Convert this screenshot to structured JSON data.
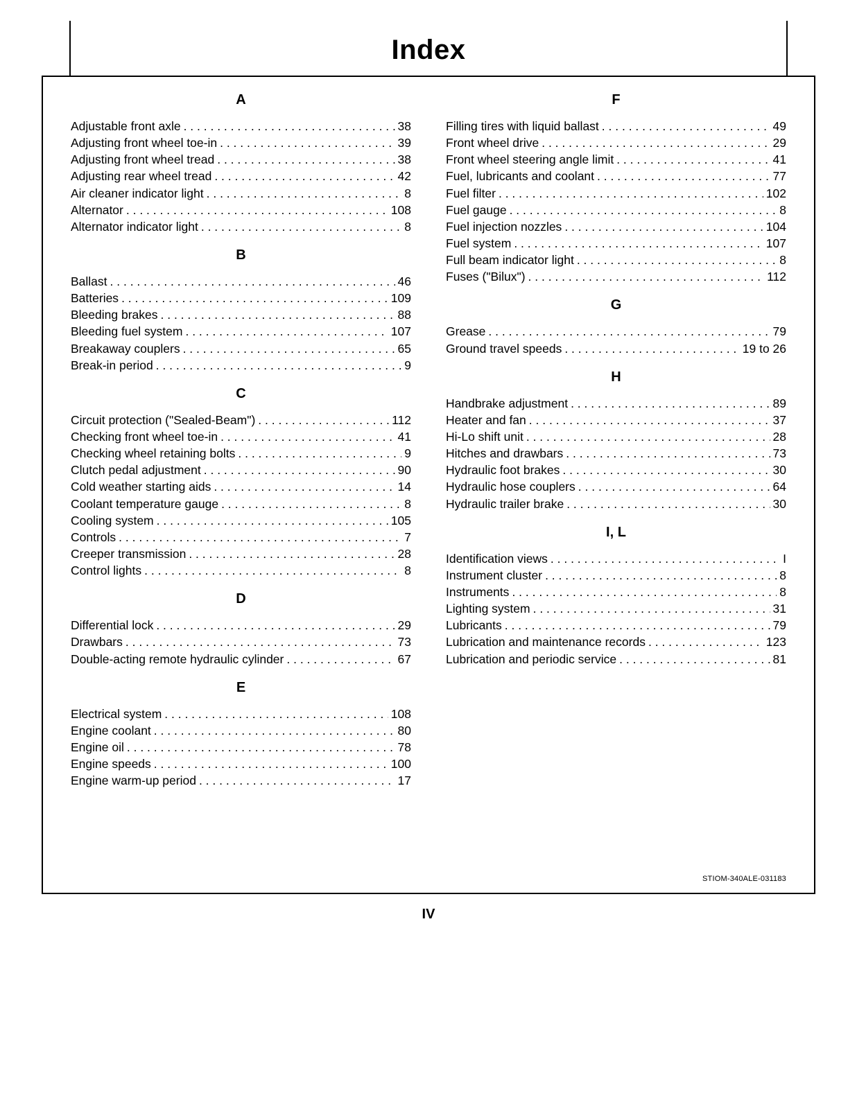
{
  "title": "Index",
  "page_number": "IV",
  "doc_code": "STIOM-340ALE-031183",
  "columns": [
    {
      "sections": [
        {
          "letter": "A",
          "entries": [
            {
              "label": "Adjustable front axle",
              "page": "38"
            },
            {
              "label": "Adjusting front wheel toe-in",
              "page": "39"
            },
            {
              "label": "Adjusting front wheel tread",
              "page": "38"
            },
            {
              "label": "Adjusting rear wheel tread",
              "page": "42"
            },
            {
              "label": "Air cleaner indicator light",
              "page": "8"
            },
            {
              "label": "Alternator",
              "page": "108"
            },
            {
              "label": "Alternator indicator light",
              "page": "8"
            }
          ]
        },
        {
          "letter": "B",
          "entries": [
            {
              "label": "Ballast",
              "page": "46"
            },
            {
              "label": "Batteries",
              "page": "109"
            },
            {
              "label": "Bleeding brakes",
              "page": "88"
            },
            {
              "label": "Bleeding fuel system",
              "page": "107"
            },
            {
              "label": "Breakaway couplers",
              "page": "65"
            },
            {
              "label": "Break-in period",
              "page": "9"
            }
          ]
        },
        {
          "letter": "C",
          "entries": [
            {
              "label": "Circuit protection (\"Sealed-Beam\")",
              "page": "112"
            },
            {
              "label": "Checking front wheel toe-in",
              "page": "41"
            },
            {
              "label": "Checking wheel retaining bolts",
              "page": "9"
            },
            {
              "label": "Clutch pedal adjustment",
              "page": "90"
            },
            {
              "label": "Cold weather starting aids",
              "page": "14"
            },
            {
              "label": "Coolant temperature gauge",
              "page": "8"
            },
            {
              "label": "Cooling system",
              "page": "105"
            },
            {
              "label": "Controls",
              "page": "7"
            },
            {
              "label": "Creeper transmission",
              "page": "28"
            },
            {
              "label": "Control lights",
              "page": "8"
            }
          ]
        },
        {
          "letter": "D",
          "entries": [
            {
              "label": "Differential lock",
              "page": "29"
            },
            {
              "label": "Drawbars",
              "page": "73"
            },
            {
              "label": "Double-acting remote hydraulic cylinder",
              "page": "67"
            }
          ]
        },
        {
          "letter": "E",
          "entries": [
            {
              "label": "Electrical system",
              "page": "108"
            },
            {
              "label": "Engine coolant",
              "page": "80"
            },
            {
              "label": "Engine oil",
              "page": "78"
            },
            {
              "label": "Engine speeds",
              "page": "100"
            },
            {
              "label": "Engine warm-up period",
              "page": "17"
            }
          ]
        }
      ]
    },
    {
      "sections": [
        {
          "letter": "F",
          "entries": [
            {
              "label": "Filling tires with liquid ballast",
              "page": "49"
            },
            {
              "label": "Front wheel drive",
              "page": "29"
            },
            {
              "label": "Front wheel steering angle limit",
              "page": "41"
            },
            {
              "label": "Fuel, lubricants and coolant",
              "page": "77"
            },
            {
              "label": "Fuel filter",
              "page": "102"
            },
            {
              "label": "Fuel gauge",
              "page": "8"
            },
            {
              "label": "Fuel injection nozzles",
              "page": "104"
            },
            {
              "label": "Fuel system",
              "page": "107"
            },
            {
              "label": "Full beam indicator light",
              "page": "8"
            },
            {
              "label": "Fuses (\"Bilux\")",
              "page": "112"
            }
          ]
        },
        {
          "letter": "G",
          "entries": [
            {
              "label": "Grease",
              "page": "79"
            },
            {
              "label": "Ground travel speeds",
              "page": "19 to 26"
            }
          ]
        },
        {
          "letter": "H",
          "entries": [
            {
              "label": "Handbrake adjustment",
              "page": "89"
            },
            {
              "label": "Heater and fan",
              "page": "37"
            },
            {
              "label": "Hi-Lo shift unit",
              "page": "28"
            },
            {
              "label": "Hitches and drawbars",
              "page": "73"
            },
            {
              "label": "Hydraulic foot brakes",
              "page": "30"
            },
            {
              "label": "Hydraulic hose couplers",
              "page": "64"
            },
            {
              "label": "Hydraulic trailer brake",
              "page": "30"
            }
          ]
        },
        {
          "letter": "I, L",
          "entries": [
            {
              "label": "Identification views",
              "page": "I"
            },
            {
              "label": "Instrument cluster",
              "page": "8"
            },
            {
              "label": "Instruments",
              "page": "8"
            },
            {
              "label": "Lighting system",
              "page": "31"
            },
            {
              "label": "Lubricants",
              "page": "79"
            },
            {
              "label": "Lubrication and maintenance records",
              "page": "123"
            },
            {
              "label": "Lubrication and periodic service",
              "page": "81"
            }
          ]
        }
      ]
    }
  ]
}
